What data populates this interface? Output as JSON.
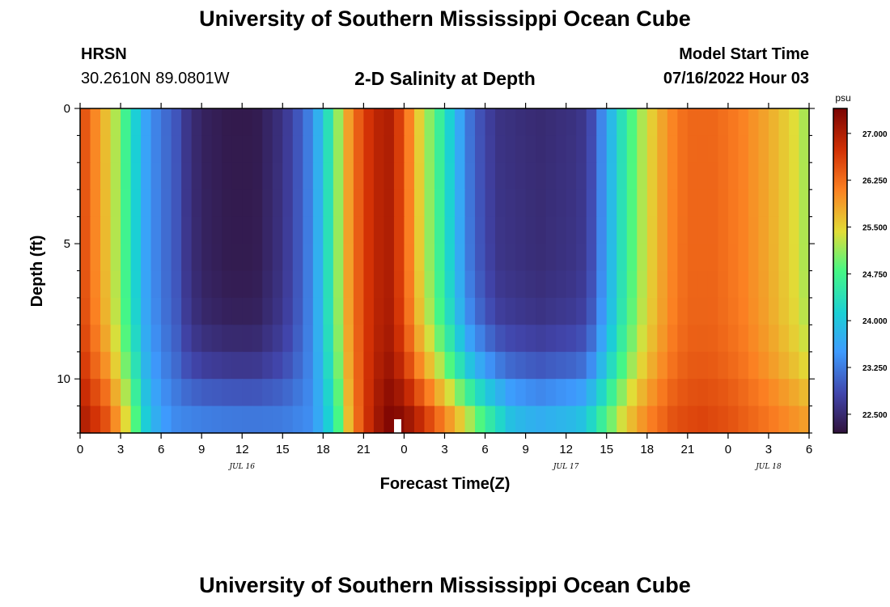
{
  "header": {
    "title": "University of Southern Mississippi Ocean Cube",
    "station": "HRSN",
    "coordinates": "30.2610N  89.0801W",
    "plot_title": "2-D Salinity at Depth",
    "model_start_label": "Model Start Time",
    "model_start_value": "07/16/2022 Hour 03"
  },
  "footer": {
    "title": "University of Southern Mississippi Ocean Cube"
  },
  "chart_data": {
    "type": "heatmap",
    "title": "2-D Salinity at Depth",
    "xlabel": "Forecast Time(Z)",
    "ylabel": "Depth (ft)",
    "x_range_hours": [
      0,
      54
    ],
    "y_range_ft": [
      0,
      12
    ],
    "x_ticks": [
      {
        "hour": 0,
        "label": "0"
      },
      {
        "hour": 3,
        "label": "3"
      },
      {
        "hour": 6,
        "label": "6"
      },
      {
        "hour": 9,
        "label": "9"
      },
      {
        "hour": 12,
        "label": "12"
      },
      {
        "hour": 15,
        "label": "15"
      },
      {
        "hour": 18,
        "label": "18"
      },
      {
        "hour": 21,
        "label": "21"
      },
      {
        "hour": 24,
        "label": "0"
      },
      {
        "hour": 27,
        "label": "3"
      },
      {
        "hour": 30,
        "label": "6"
      },
      {
        "hour": 33,
        "label": "9"
      },
      {
        "hour": 36,
        "label": "12"
      },
      {
        "hour": 39,
        "label": "15"
      },
      {
        "hour": 42,
        "label": "18"
      },
      {
        "hour": 45,
        "label": "21"
      },
      {
        "hour": 48,
        "label": "0"
      },
      {
        "hour": 51,
        "label": "3"
      },
      {
        "hour": 54,
        "label": "6"
      }
    ],
    "date_labels": [
      {
        "hour": 12,
        "label": "JUL 16"
      },
      {
        "hour": 36,
        "label": "JUL 17"
      },
      {
        "hour": 51,
        "label": "JUL 18"
      }
    ],
    "y_ticks": [
      {
        "depth": 0,
        "label": "0"
      },
      {
        "depth": 5,
        "label": "5"
      },
      {
        "depth": 10,
        "label": "10"
      }
    ],
    "colorbar": {
      "unit": "psu",
      "min": 22.2,
      "max": 27.4,
      "ticks": [
        22.5,
        23.25,
        24.0,
        24.75,
        25.5,
        26.25,
        27.0
      ],
      "tick_labels": [
        "22.500",
        "23.250",
        "24.000",
        "24.750",
        "25.500",
        "26.250",
        "27.000"
      ]
    },
    "note": "Salinity field approximated from the image: high near hour 0, low (about 22.3-23.3 psu) between hours 7-18 at the surface, peak (about 27.4 psu) near hour 23 at depth, second low between hours 30-40 near the surface, then high (about 26-27 psu) after hour 45."
  }
}
